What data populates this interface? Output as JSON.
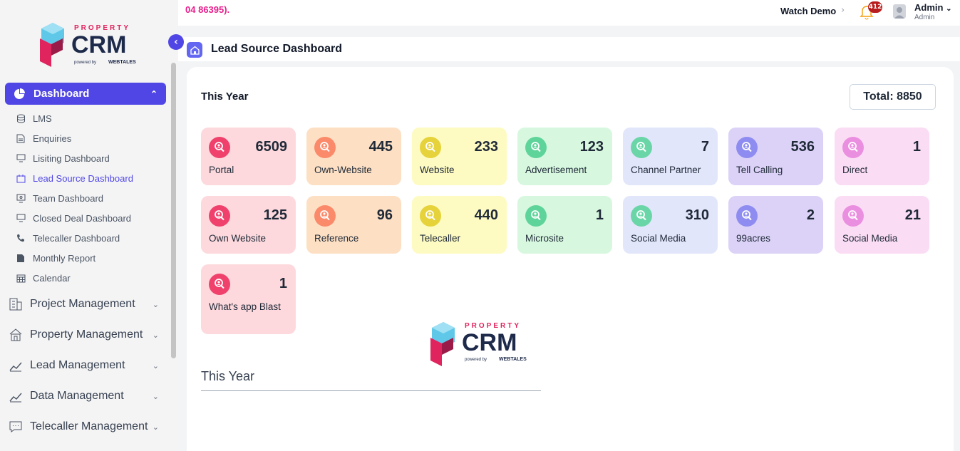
{
  "sidebar": {
    "logo": {
      "top": "PROPERTY",
      "main": "CRM",
      "powered": "powered by",
      "brand": "WEBTALES"
    },
    "active": {
      "label": "Dashboard"
    },
    "sub_items": [
      {
        "label": "LMS",
        "icon": "database-icon"
      },
      {
        "label": "Enquiries",
        "icon": "document-icon"
      },
      {
        "label": "Lisiting Dashboard",
        "icon": "monitor-icon"
      },
      {
        "label": "Lead Source Dashboard",
        "icon": "calendar-icon",
        "active": true
      },
      {
        "label": "Team Dashboard",
        "icon": "team-icon"
      },
      {
        "label": "Closed Deal Dashboard",
        "icon": "monitor-icon"
      },
      {
        "label": "Telecaller Dashboard",
        "icon": "phone-icon"
      },
      {
        "label": "Monthly Report",
        "icon": "file-icon"
      },
      {
        "label": "Calendar",
        "icon": "calendar-grid-icon"
      }
    ],
    "main_items": [
      {
        "label": "Project Management",
        "icon": "building-icon"
      },
      {
        "label": "Property Management",
        "icon": "house-icon"
      },
      {
        "label": "Lead Management",
        "icon": "chart-line-icon"
      },
      {
        "label": "Data Management",
        "icon": "chart-line-icon"
      },
      {
        "label": "Telecaller Management",
        "icon": "chat-icon"
      }
    ]
  },
  "topbar": {
    "notice": "04 86395).",
    "watch_demo": "Watch Demo",
    "notif_count": "412",
    "user_name": "Admin",
    "user_role": "Admin"
  },
  "header": {
    "title": "Lead Source Dashboard"
  },
  "main": {
    "period": "This Year",
    "total": "Total: 8850",
    "section_title": "This Year"
  },
  "cards": [
    {
      "value": "6509",
      "label": "Portal",
      "bg": "#fdd9dd",
      "icon_bg": "#f0416c"
    },
    {
      "value": "445",
      "label": "Own-Website",
      "bg": "#fde0c4",
      "icon_bg": "#fb8a6a"
    },
    {
      "value": "233",
      "label": "Website",
      "bg": "#fdfbc2",
      "icon_bg": "#e6d23a"
    },
    {
      "value": "123",
      "label": "Advertisement",
      "bg": "#d7f8df",
      "icon_bg": "#5fd49a"
    },
    {
      "value": "7",
      "label": "Channel Partner",
      "bg": "#e2e6fb",
      "icon_bg": "#6ad6a8"
    },
    {
      "value": "536",
      "label": "Tell Calling",
      "bg": "#dcd2f8",
      "icon_bg": "#8e8cf0"
    },
    {
      "value": "1",
      "label": "Direct",
      "bg": "#fbdcf5",
      "icon_bg": "#ea8fe0"
    },
    {
      "value": "125",
      "label": "Own Website",
      "bg": "#fdd9dd",
      "icon_bg": "#f0416c"
    },
    {
      "value": "96",
      "label": "Reference",
      "bg": "#fde0c4",
      "icon_bg": "#fb8a6a"
    },
    {
      "value": "440",
      "label": "Telecaller",
      "bg": "#fdfbc2",
      "icon_bg": "#e6d23a"
    },
    {
      "value": "1",
      "label": "Microsite",
      "bg": "#d7f8df",
      "icon_bg": "#5fd49a"
    },
    {
      "value": "310",
      "label": "Social Media",
      "bg": "#e2e6fb",
      "icon_bg": "#6ad6a8"
    },
    {
      "value": "2",
      "label": "99acres",
      "bg": "#dcd2f8",
      "icon_bg": "#8e8cf0"
    },
    {
      "value": "21",
      "label": "Social Media",
      "bg": "#fbdcf5",
      "icon_bg": "#ea8fe0"
    },
    {
      "value": "1",
      "label": "What's app Blast",
      "bg": "#fdd9dd",
      "icon_bg": "#f0416c"
    }
  ]
}
